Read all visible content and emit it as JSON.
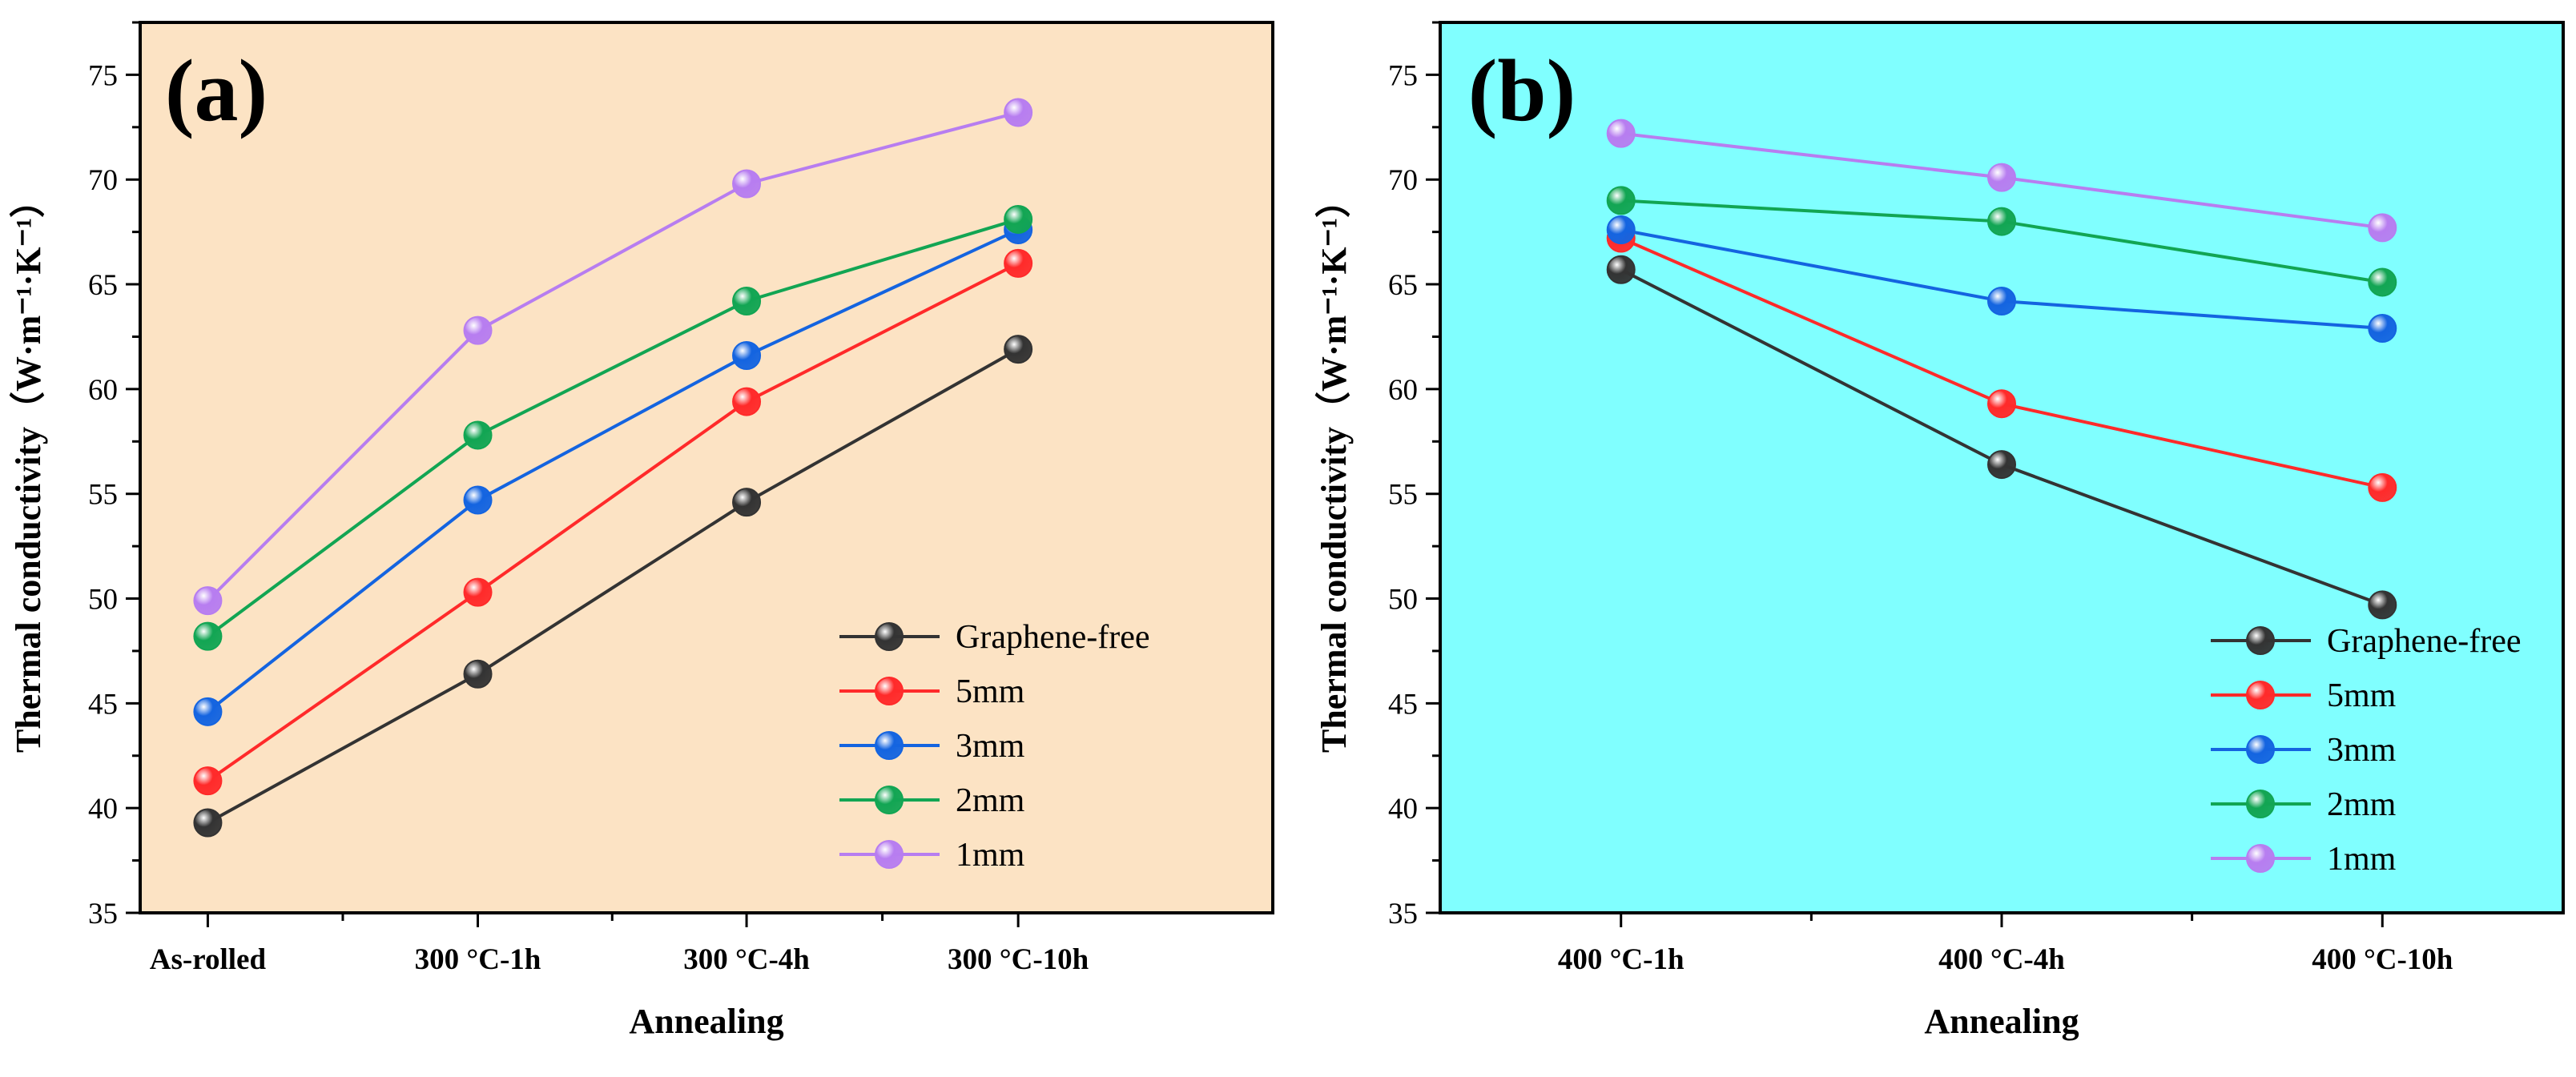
{
  "figure": {
    "panels": [
      "(a)",
      "(b)"
    ]
  },
  "chart_data": [
    {
      "type": "line",
      "panel_label": "(a)",
      "background": "#FCE3C4",
      "xlabel": "Annealing",
      "ylabel": "Thermal conductivity（W·m⁻¹·K⁻¹）",
      "categories": [
        "As-rolled",
        "300 °C-1h",
        "300 °C-4h",
        "300 °C-10h"
      ],
      "ylim": [
        35,
        77.5
      ],
      "yticks": [
        35,
        40,
        45,
        50,
        55,
        60,
        65,
        70,
        75
      ],
      "legend_position": "bottom-right",
      "series": [
        {
          "name": "Graphene-free",
          "color": "#333333",
          "values": [
            39.3,
            46.4,
            54.6,
            61.9
          ]
        },
        {
          "name": "5mm",
          "color": "#FF2A2A",
          "values": [
            41.3,
            50.3,
            59.4,
            66.0
          ]
        },
        {
          "name": "3mm",
          "color": "#1464E0",
          "values": [
            44.6,
            54.7,
            61.6,
            67.6
          ]
        },
        {
          "name": "2mm",
          "color": "#12A553",
          "values": [
            48.2,
            57.8,
            64.2,
            68.1
          ]
        },
        {
          "name": "1mm",
          "color": "#B77DF0",
          "values": [
            49.9,
            62.8,
            69.8,
            73.2
          ]
        }
      ]
    },
    {
      "type": "line",
      "panel_label": "(b)",
      "background": "#80FFFF",
      "xlabel": "Annealing",
      "ylabel": "Thermal conductivity（W·m⁻¹·K⁻¹）",
      "categories": [
        "400 °C-1h",
        "400 °C-4h",
        "400 °C-10h"
      ],
      "ylim": [
        35,
        77.5
      ],
      "yticks": [
        35,
        40,
        45,
        50,
        55,
        60,
        65,
        70,
        75
      ],
      "legend_position": "bottom-right",
      "series": [
        {
          "name": "Graphene-free",
          "color": "#333333",
          "values": [
            65.7,
            56.4,
            49.7
          ]
        },
        {
          "name": "5mm",
          "color": "#FF2A2A",
          "values": [
            67.2,
            59.3,
            55.3
          ]
        },
        {
          "name": "3mm",
          "color": "#1464E0",
          "values": [
            67.6,
            64.2,
            62.9
          ]
        },
        {
          "name": "2mm",
          "color": "#12A553",
          "values": [
            69.0,
            68.0,
            65.1
          ]
        },
        {
          "name": "1mm",
          "color": "#B77DF0",
          "values": [
            72.2,
            70.1,
            67.7
          ]
        }
      ]
    }
  ]
}
